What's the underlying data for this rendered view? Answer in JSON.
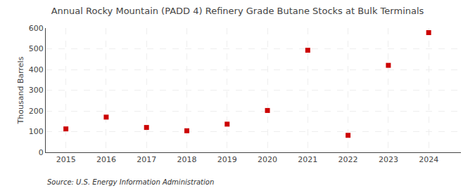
{
  "chart_data": {
    "type": "scatter",
    "title": "Annual Rocky Mountain (PADD 4) Refinery Grade Butane Stocks at Bulk Terminals",
    "ylabel": "Thousand Barrels",
    "annotations": [
      "Source: U.S. Energy Information Administration"
    ],
    "x": [
      2015,
      2016,
      2017,
      2018,
      2019,
      2020,
      2021,
      2022,
      2023,
      2024
    ],
    "values": [
      113,
      170,
      120,
      104,
      136,
      202,
      493,
      82,
      420,
      578
    ],
    "color": "#cc0000",
    "marker": "square",
    "xlim": [
      2014.5,
      2024.8
    ],
    "xticks": [
      2015,
      2016,
      2017,
      2018,
      2019,
      2020,
      2021,
      2022,
      2023,
      2024
    ],
    "ylim": [
      0,
      600
    ],
    "yticks": [
      0,
      100,
      200,
      300,
      400,
      500,
      600
    ],
    "grid": true
  }
}
